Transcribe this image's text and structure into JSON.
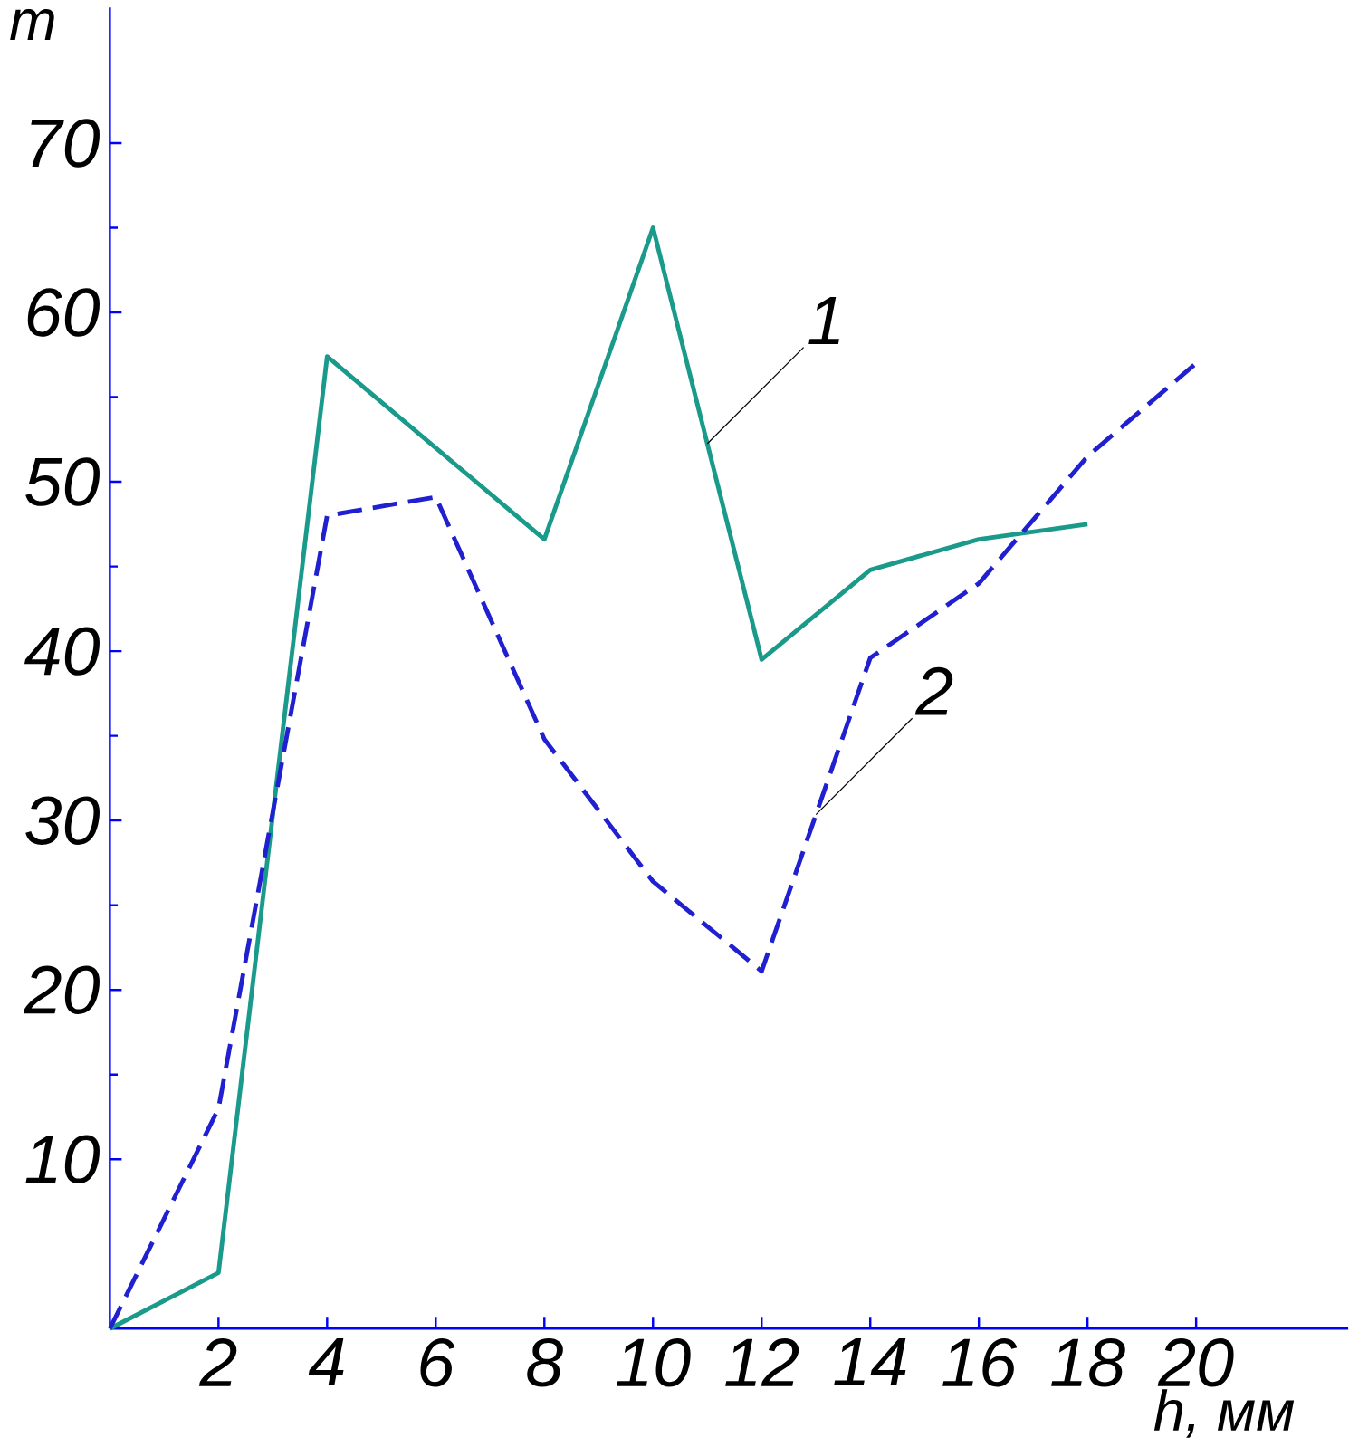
{
  "chart_data": {
    "type": "line",
    "xlabel": "h, мм",
    "ylabel": "m",
    "xlim": [
      0,
      22.8
    ],
    "ylim": [
      0,
      78
    ],
    "xticks": [
      2,
      4,
      6,
      8,
      10,
      12,
      14,
      16,
      18,
      20
    ],
    "yticks": [
      10,
      20,
      30,
      40,
      50,
      60,
      70
    ],
    "grid": false,
    "legend": false,
    "marker": "none",
    "x": [
      0,
      2,
      4,
      6,
      8,
      10,
      12,
      14,
      16,
      18,
      20
    ],
    "series": [
      {
        "name": "1",
        "color": "#1a9a8a",
        "line_style": "solid",
        "values": [
          0,
          3.3,
          57.4,
          52,
          46.6,
          65,
          39.5,
          44.8,
          46.6,
          47.5,
          null
        ]
      },
      {
        "name": "2",
        "color": "#2020d0",
        "line_style": "dashed",
        "values": [
          0,
          13,
          48,
          49.1,
          34.8,
          26.4,
          21.1,
          39.6,
          44,
          51.5,
          57
        ]
      }
    ]
  }
}
